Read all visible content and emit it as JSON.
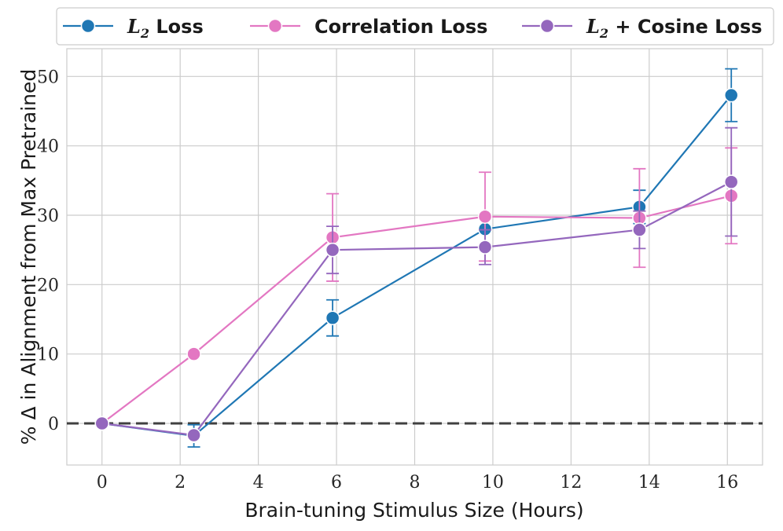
{
  "chart_data": {
    "type": "line",
    "title": "",
    "xlabel": "Brain-tuning Stimulus Size (Hours)",
    "ylabel": "% Δ in Alignment from Max Pretrained",
    "xlim": [
      -0.9,
      16.9
    ],
    "ylim": [
      -6,
      54
    ],
    "xticks": [
      0,
      2,
      4,
      6,
      8,
      10,
      12,
      14,
      16
    ],
    "yticks": [
      0,
      10,
      20,
      30,
      40,
      50
    ],
    "grid": true,
    "reference_line": {
      "y": 0,
      "style": "dashed",
      "color": "#404040"
    },
    "legend_position": "top, outside plot",
    "series": [
      {
        "name": "L2 Loss",
        "legend_math": "L",
        "legend_sub": "2",
        "legend_rest": " Loss",
        "color": "#1f77b4",
        "x": [
          0,
          2.35,
          5.9,
          9.8,
          13.75,
          16.1
        ],
        "y": [
          0,
          -1.8,
          15.2,
          28.0,
          31.2,
          47.3
        ],
        "err": [
          0,
          1.6,
          2.6,
          0,
          2.4,
          3.8
        ]
      },
      {
        "name": "Correlation Loss",
        "legend_math": "",
        "legend_sub": "",
        "legend_rest": "Correlation Loss",
        "color": "#e377c2",
        "x": [
          0,
          2.35,
          5.9,
          9.8,
          13.75,
          16.1
        ],
        "y": [
          0,
          10.0,
          26.8,
          29.8,
          29.6,
          32.8
        ],
        "err": [
          0,
          0,
          6.3,
          6.4,
          7.1,
          6.9
        ]
      },
      {
        "name": "L2 + Cosine Loss",
        "legend_math": "L",
        "legend_sub": "2",
        "legend_rest": " + Cosine Loss",
        "color": "#9467bd",
        "x": [
          0,
          2.35,
          5.9,
          9.8,
          13.75,
          16.1
        ],
        "y": [
          0,
          -1.7,
          25.0,
          25.4,
          27.9,
          34.8
        ],
        "err": [
          0,
          0,
          3.4,
          2.5,
          2.7,
          7.8
        ]
      }
    ]
  }
}
